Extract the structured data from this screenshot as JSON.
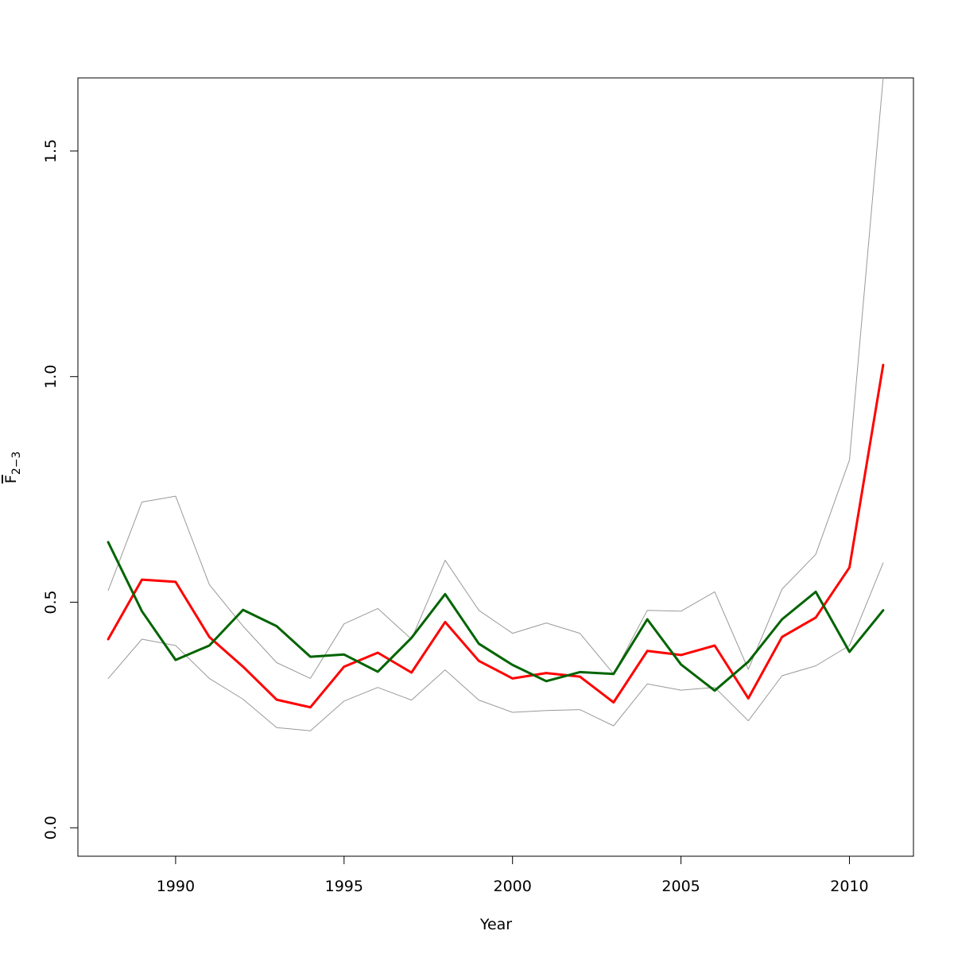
{
  "chart_data": {
    "type": "line",
    "title": "",
    "xlabel": "Year",
    "ylabel": {
      "base": "F",
      "subscript": "2−3"
    },
    "xlim": [
      1987.1,
      2011.9
    ],
    "ylim": [
      -0.063,
      1.662
    ],
    "x_ticks": [
      1990,
      1995,
      2000,
      2005,
      2010
    ],
    "x_tick_labels": [
      "1990",
      "1995",
      "2000",
      "2005",
      "2010"
    ],
    "y_ticks": [
      0.0,
      0.5,
      1.0,
      1.5
    ],
    "y_tick_labels": [
      "0.0",
      "0.5",
      "1.0",
      "1.5"
    ],
    "grid": false,
    "x": [
      1988,
      1989,
      1990,
      1991,
      1992,
      1993,
      1994,
      1995,
      1996,
      1997,
      1998,
      1999,
      2000,
      2001,
      2002,
      2003,
      2004,
      2005,
      2006,
      2007,
      2008,
      2009,
      2010,
      2011
    ],
    "series": [
      {
        "role": "upper",
        "color": "#999999",
        "width": 1,
        "values": [
          0.526,
          0.722,
          0.735,
          0.539,
          0.447,
          0.366,
          0.331,
          0.452,
          0.486,
          0.418,
          0.593,
          0.482,
          0.431,
          0.454,
          0.431,
          0.341,
          0.482,
          0.48,
          0.523,
          0.351,
          0.529,
          0.606,
          0.815,
          1.662
        ]
      },
      {
        "role": "lower",
        "color": "#999999",
        "width": 1,
        "values": [
          0.331,
          0.418,
          0.404,
          0.331,
          0.285,
          0.222,
          0.215,
          0.281,
          0.311,
          0.283,
          0.35,
          0.283,
          0.256,
          0.26,
          0.262,
          0.226,
          0.319,
          0.305,
          0.311,
          0.237,
          0.337,
          0.359,
          0.404,
          0.587
        ]
      },
      {
        "role": "estimate",
        "color": "#ff0000",
        "width": 3,
        "values": [
          0.418,
          0.55,
          0.545,
          0.423,
          0.357,
          0.284,
          0.267,
          0.357,
          0.388,
          0.344,
          0.456,
          0.37,
          0.331,
          0.343,
          0.335,
          0.278,
          0.392,
          0.383,
          0.404,
          0.287,
          0.423,
          0.466,
          0.577,
          1.026
        ]
      },
      {
        "role": "comparison",
        "color": "#006400",
        "width": 3,
        "values": [
          0.633,
          0.48,
          0.372,
          0.404,
          0.483,
          0.447,
          0.379,
          0.384,
          0.346,
          0.421,
          0.518,
          0.408,
          0.361,
          0.325,
          0.345,
          0.341,
          0.462,
          0.362,
          0.304,
          0.368,
          0.462,
          0.523,
          0.39,
          0.482
        ]
      }
    ]
  }
}
